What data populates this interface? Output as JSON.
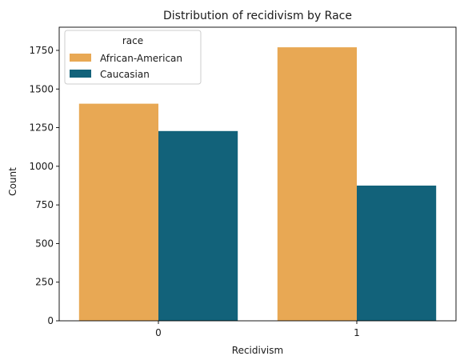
{
  "chart_data": {
    "type": "bar",
    "title": "Distribution of recidivism by Race",
    "xlabel": "Recidivism",
    "ylabel": "Count",
    "categories": [
      "0",
      "1"
    ],
    "series": [
      {
        "name": "African-American",
        "values": [
          1405,
          1770
        ],
        "color": "#e8a854"
      },
      {
        "name": "Caucasian",
        "values": [
          1228,
          875
        ],
        "color": "#12627a"
      }
    ],
    "ylim": [
      0,
      1900
    ],
    "yticks": [
      0,
      250,
      500,
      750,
      1000,
      1250,
      1500,
      1750
    ],
    "ytick_labels": [
      "0",
      "250",
      "500",
      "750",
      "1000",
      "1250",
      "1500",
      "1750"
    ],
    "legend": {
      "title": "race",
      "placement": "top-left"
    },
    "grid": false
  }
}
